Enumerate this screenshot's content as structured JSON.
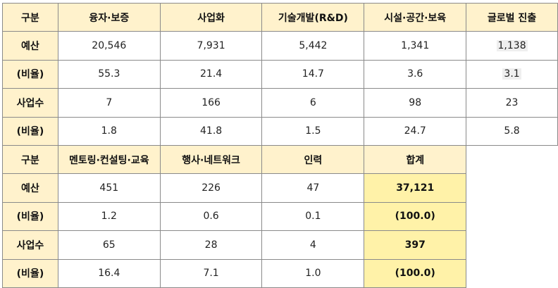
{
  "top_header": [
    "구분",
    "융자·보증",
    "사업화",
    "기술개발(R&D)",
    "시설·공간·보육",
    "글로벌 진출"
  ],
  "top_rows": [
    [
      "예산",
      "20,546",
      "7,931",
      "5,442",
      "1,341",
      "1,138"
    ],
    [
      "(비율)",
      "55.3",
      "21.4",
      "14.7",
      "3.6",
      "3.1"
    ],
    [
      "사업수",
      "7",
      "166",
      "6",
      "98",
      "23"
    ],
    [
      "(비율)",
      "1.8",
      "41.8",
      "1.5",
      "24.7",
      "5.8"
    ]
  ],
  "bottom_header": [
    "구분",
    "멘토링·컨설팅·교육",
    "행사·네트워크",
    "인력",
    "합계"
  ],
  "bottom_rows": [
    [
      "예산",
      "451",
      "226",
      "47",
      "37,121"
    ],
    [
      "(비율)",
      "1.2",
      "0.6",
      "0.1",
      "(100.0)"
    ],
    [
      "사업수",
      "65",
      "28",
      "4",
      "397"
    ],
    [
      "(비율)",
      "16.4",
      "7.1",
      "1.0",
      "(100.0)"
    ]
  ]
}
